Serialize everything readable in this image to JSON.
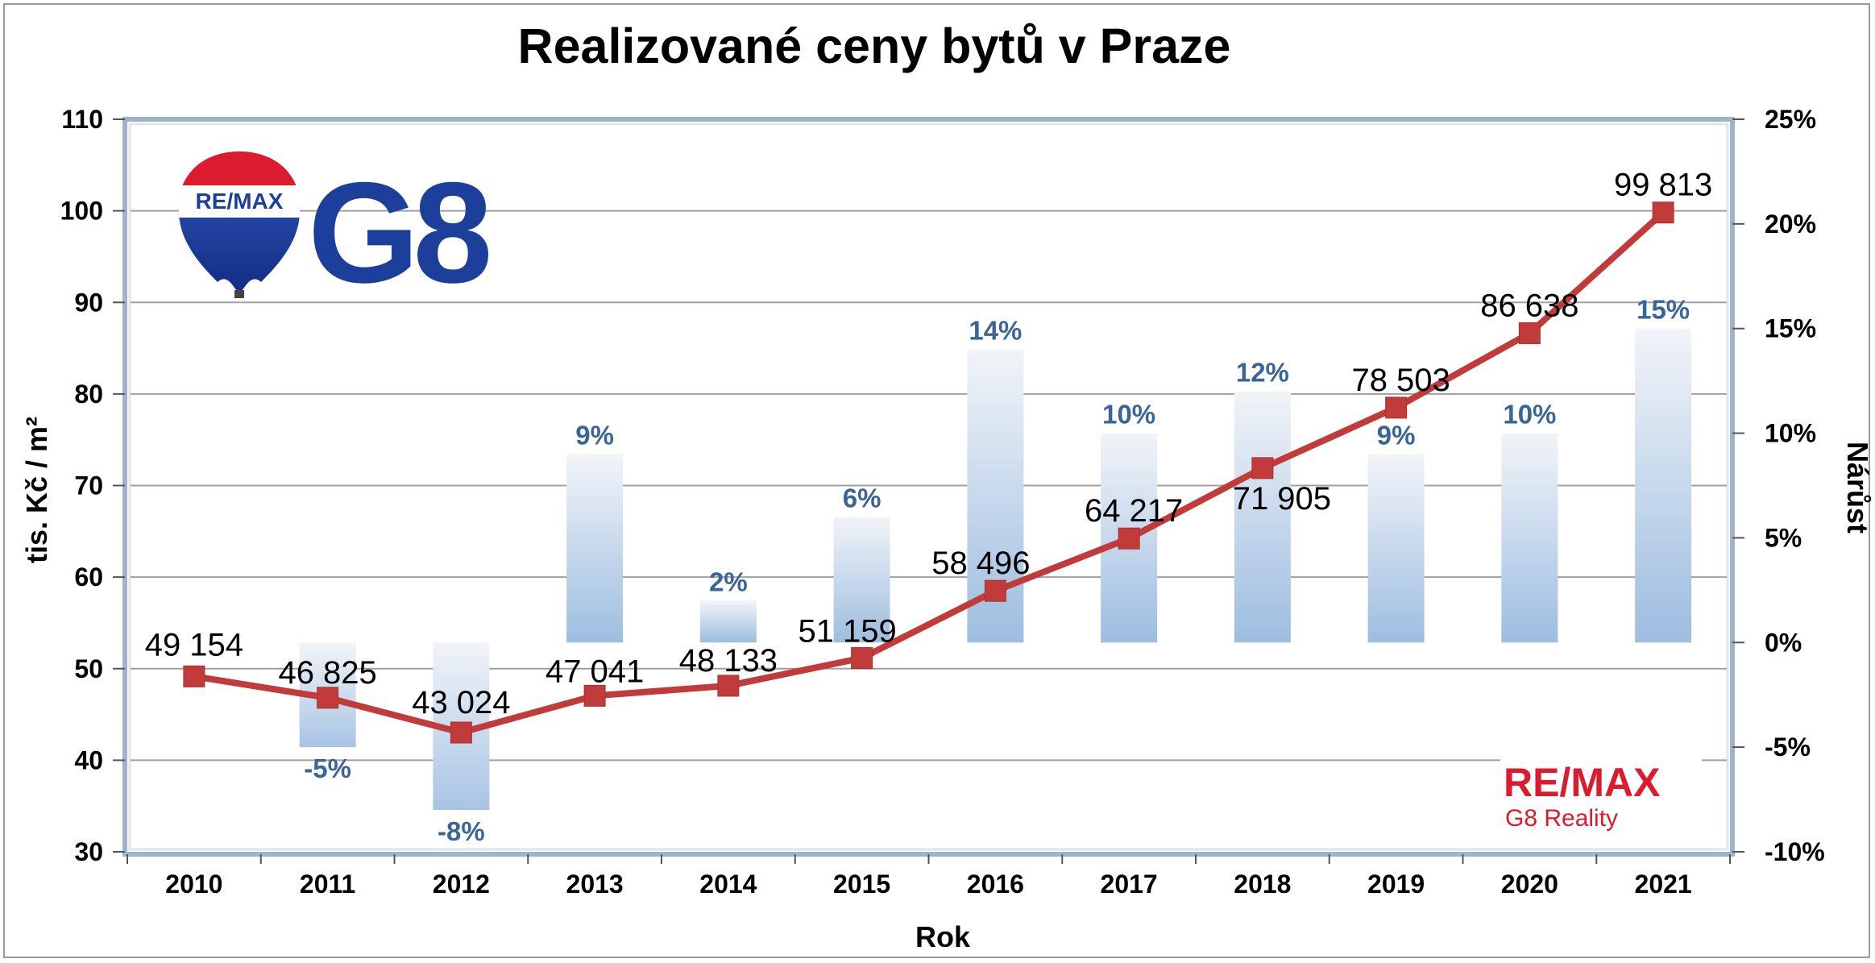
{
  "chart_data": {
    "type": "bar+line",
    "title": "Realizované ceny bytů v Praze",
    "xlabel": "Rok",
    "ylabel_left": "tis. Kč / m²",
    "ylabel_right": "Nárůst",
    "categories": [
      "2010",
      "2011",
      "2012",
      "2013",
      "2014",
      "2015",
      "2016",
      "2017",
      "2018",
      "2019",
      "2020",
      "2021"
    ],
    "y_left": {
      "min": 30,
      "max": 110,
      "step": 10,
      "ticks": [
        "30",
        "40",
        "50",
        "60",
        "70",
        "80",
        "90",
        "100",
        "110"
      ]
    },
    "y_right": {
      "min": -10,
      "max": 25,
      "step": 5,
      "ticks": [
        "-10%",
        "-5%",
        "0%",
        "5%",
        "10%",
        "15%",
        "20%",
        "25%"
      ]
    },
    "grid": true,
    "series": [
      {
        "type": "line",
        "axis": "left",
        "color": "#c23b3b",
        "values": [
          49.154,
          46.825,
          43.024,
          47.041,
          48.133,
          51.159,
          58.496,
          64.217,
          71.905,
          78.503,
          86.638,
          99.813
        ],
        "labels": [
          "49 154",
          "46 825",
          "43 024",
          "47 041",
          "48 133",
          "51 159",
          "58 496",
          "64 217",
          "71 905",
          "78 503",
          "86 638",
          "99 813"
        ]
      },
      {
        "type": "bar",
        "axis": "right",
        "color": "#a9c3e3",
        "values": [
          0,
          -5,
          -8,
          9,
          2,
          6,
          14,
          10,
          12,
          9,
          10,
          15
        ],
        "labels": [
          "",
          "-5%",
          "-8%",
          "9%",
          "2%",
          "6%",
          "14%",
          "10%",
          "12%",
          "9%",
          "10%",
          "15%"
        ]
      }
    ]
  },
  "logos": {
    "top_left_balloon": "RE/MAX",
    "top_left_brand": "G8",
    "bottom_right_brand": "RE/MAX",
    "bottom_right_sub": "G8 Reality"
  },
  "colors": {
    "line": "#c23b3b",
    "bar": "#a9c3e3",
    "percent_label": "#3a6596",
    "remax_red": "#dc1c2e",
    "remax_blue": "#1c3f9c"
  }
}
